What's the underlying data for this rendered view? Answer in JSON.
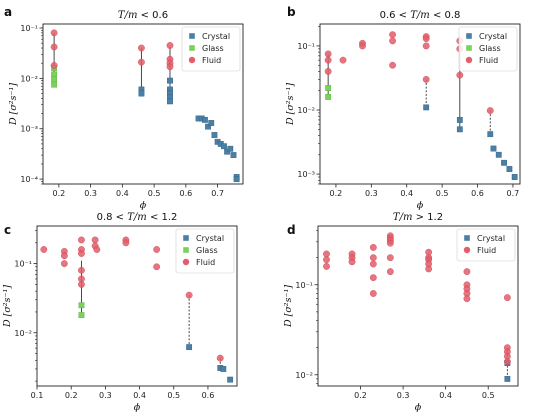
{
  "colors": {
    "crystal": "#4a7fa6",
    "glass": "#7ad25c",
    "fluid": "#e35d6a",
    "connector": "#333333"
  },
  "legend_labels": {
    "crystal": "Crystal",
    "glass": "Glass",
    "fluid": "Fluid"
  },
  "chart_data": [
    {
      "type": "scatter",
      "panel": "a",
      "title": "T/m < 0.6",
      "xlabel": "ϕ",
      "ylabel": "D [σ²s⁻¹]",
      "xscale": "linear",
      "yscale": "log",
      "xlim": [
        0.15,
        0.78
      ],
      "ylim": [
        8e-05,
        0.12
      ],
      "xticks": [
        0.2,
        0.3,
        0.4,
        0.5,
        0.6,
        0.7
      ],
      "xtick_labels": [
        "0.2",
        "0.3",
        "0.4",
        "0.5",
        "0.6",
        "0.7"
      ],
      "yticks": [
        0.0001,
        0.001,
        0.01,
        0.1
      ],
      "ytick_labels": [
        "10⁻⁴",
        "10⁻³",
        "10⁻²",
        "10⁻¹"
      ],
      "legend_position": "top-right",
      "legend": [
        "crystal",
        "glass",
        "fluid"
      ],
      "connectors": [
        {
          "x": 0.185,
          "y1": 0.08,
          "y2": 0.0075,
          "style": "solid"
        },
        {
          "x": 0.46,
          "y1": 0.04,
          "y2": 0.005,
          "style": "solid"
        },
        {
          "x": 0.55,
          "y1": 0.042,
          "y2": 0.0035,
          "style": "solid"
        }
      ],
      "series": [
        {
          "name": "Crystal",
          "kind": "crystal",
          "x": [
            0.46,
            0.46,
            0.55,
            0.55,
            0.55,
            0.55,
            0.55,
            0.64,
            0.65,
            0.66,
            0.67,
            0.68,
            0.69,
            0.7,
            0.71,
            0.72,
            0.73,
            0.74,
            0.75,
            0.76,
            0.76
          ],
          "y": [
            0.006,
            0.005,
            0.009,
            0.006,
            0.005,
            0.0042,
            0.0035,
            0.0016,
            0.0016,
            0.0015,
            0.0011,
            0.0013,
            0.00075,
            0.00055,
            0.0005,
            0.00045,
            0.00035,
            0.0004,
            0.0003,
            0.00011,
            0.0001
          ]
        },
        {
          "name": "Glass",
          "kind": "glass",
          "x": [
            0.185,
            0.185,
            0.185,
            0.185
          ],
          "y": [
            0.016,
            0.012,
            0.0095,
            0.0075
          ]
        },
        {
          "name": "Fluid",
          "kind": "fluid",
          "x": [
            0.185,
            0.185,
            0.185,
            0.46,
            0.46,
            0.55,
            0.55,
            0.55,
            0.55
          ],
          "y": [
            0.08,
            0.042,
            0.018,
            0.04,
            0.021,
            0.045,
            0.024,
            0.02,
            0.017
          ]
        }
      ]
    },
    {
      "type": "scatter",
      "panel": "b",
      "title": "0.6 < T/m < 0.8",
      "xlabel": "ϕ",
      "ylabel": "D [σ²s⁻¹]",
      "xscale": "linear",
      "yscale": "log",
      "xlim": [
        0.155,
        0.72
      ],
      "ylim": [
        0.0007,
        0.22
      ],
      "xticks": [
        0.2,
        0.3,
        0.4,
        0.5,
        0.6,
        0.7
      ],
      "xtick_labels": [
        "0.2",
        "0.3",
        "0.4",
        "0.5",
        "0.6",
        "0.7"
      ],
      "yticks": [
        0.001,
        0.01,
        0.1
      ],
      "ytick_labels": [
        "10⁻³",
        "10⁻²",
        "10⁻¹"
      ],
      "legend_position": "top-right",
      "legend": [
        "crystal",
        "glass",
        "fluid"
      ],
      "connectors": [
        {
          "x": 0.178,
          "y1": 0.075,
          "y2": 0.016,
          "style": "solid"
        },
        {
          "x": 0.455,
          "y1": 0.03,
          "y2": 0.011,
          "style": "dashed"
        },
        {
          "x": 0.55,
          "y1": 0.12,
          "y2": 0.005,
          "style": "solid"
        },
        {
          "x": 0.636,
          "y1": 0.0098,
          "y2": 0.0042,
          "style": "dashed"
        }
      ],
      "series": [
        {
          "name": "Crystal",
          "kind": "crystal",
          "x": [
            0.455,
            0.55,
            0.55,
            0.636,
            0.645,
            0.66,
            0.675,
            0.69,
            0.705
          ],
          "y": [
            0.011,
            0.007,
            0.005,
            0.0042,
            0.0025,
            0.002,
            0.0015,
            0.0012,
            0.0009
          ]
        },
        {
          "name": "Glass",
          "kind": "glass",
          "x": [
            0.178,
            0.178
          ],
          "y": [
            0.022,
            0.016
          ]
        },
        {
          "name": "Fluid",
          "kind": "fluid",
          "x": [
            0.178,
            0.178,
            0.178,
            0.22,
            0.275,
            0.275,
            0.36,
            0.36,
            0.36,
            0.455,
            0.455,
            0.455,
            0.455,
            0.55,
            0.55,
            0.55,
            0.636
          ],
          "y": [
            0.075,
            0.06,
            0.04,
            0.06,
            0.11,
            0.1,
            0.15,
            0.12,
            0.05,
            0.14,
            0.13,
            0.1,
            0.03,
            0.12,
            0.09,
            0.035,
            0.0098
          ]
        }
      ]
    },
    {
      "type": "scatter",
      "panel": "c",
      "title": "0.8 < T/m < 1.2",
      "xlabel": "ϕ",
      "ylabel": "D [σ²s⁻¹]",
      "xscale": "linear",
      "yscale": "log",
      "xlim": [
        0.1,
        0.685
      ],
      "ylim": [
        0.0017,
        0.35
      ],
      "xticks": [
        0.1,
        0.2,
        0.3,
        0.4,
        0.5,
        0.6
      ],
      "xtick_labels": [
        "0.1",
        "0.2",
        "0.3",
        "0.4",
        "0.5",
        "0.6"
      ],
      "yticks": [
        0.01,
        0.1
      ],
      "ytick_labels": [
        "10⁻²",
        "10⁻¹"
      ],
      "legend_position": "top-right",
      "legend": [
        "crystal",
        "glass",
        "fluid"
      ],
      "connectors": [
        {
          "x": 0.23,
          "y1": 0.11,
          "y2": 0.018,
          "style": "solid"
        },
        {
          "x": 0.545,
          "y1": 0.035,
          "y2": 0.0062,
          "style": "dashed"
        },
        {
          "x": 0.636,
          "y1": 0.0043,
          "y2": 0.003,
          "style": "dashed"
        }
      ],
      "series": [
        {
          "name": "Crystal",
          "kind": "crystal",
          "x": [
            0.545,
            0.636,
            0.645,
            0.665
          ],
          "y": [
            0.0062,
            0.0031,
            0.003,
            0.0021
          ]
        },
        {
          "name": "Glass",
          "kind": "glass",
          "x": [
            0.23,
            0.23
          ],
          "y": [
            0.025,
            0.018
          ]
        },
        {
          "name": "Fluid",
          "kind": "fluid",
          "x": [
            0.12,
            0.18,
            0.18,
            0.18,
            0.23,
            0.23,
            0.23,
            0.23,
            0.23,
            0.23,
            0.27,
            0.27,
            0.275,
            0.36,
            0.36,
            0.45,
            0.45,
            0.545,
            0.636
          ],
          "y": [
            0.16,
            0.15,
            0.13,
            0.1,
            0.22,
            0.16,
            0.14,
            0.08,
            0.06,
            0.05,
            0.22,
            0.18,
            0.16,
            0.22,
            0.2,
            0.16,
            0.09,
            0.035,
            0.0043
          ]
        }
      ]
    },
    {
      "type": "scatter",
      "panel": "d",
      "title": "T/m > 1.2",
      "xlabel": "ϕ",
      "ylabel": "D [σ²s⁻¹]",
      "xscale": "linear",
      "yscale": "log",
      "xlim": [
        0.1,
        0.57
      ],
      "ylim": [
        0.0075,
        0.45
      ],
      "xticks": [
        0.2,
        0.3,
        0.4,
        0.5
      ],
      "xtick_labels": [
        "0.2",
        "0.3",
        "0.4",
        "0.5"
      ],
      "yticks": [
        0.01,
        0.1
      ],
      "ytick_labels": [
        "10⁻²",
        "10⁻¹"
      ],
      "legend_position": "top-right",
      "legend": [
        "crystal",
        "fluid"
      ],
      "connectors": [
        {
          "x": 0.545,
          "y1": 0.02,
          "y2": 0.009,
          "style": "dashed"
        }
      ],
      "series": [
        {
          "name": "Crystal",
          "kind": "crystal",
          "x": [
            0.545,
            0.545
          ],
          "y": [
            0.0135,
            0.009
          ]
        },
        {
          "name": "Fluid",
          "kind": "fluid",
          "x": [
            0.12,
            0.12,
            0.12,
            0.18,
            0.18,
            0.18,
            0.23,
            0.23,
            0.23,
            0.23,
            0.23,
            0.27,
            0.27,
            0.27,
            0.27,
            0.27,
            0.27,
            0.36,
            0.36,
            0.36,
            0.36,
            0.36,
            0.45,
            0.45,
            0.45,
            0.45,
            0.45,
            0.545,
            0.545,
            0.545,
            0.545,
            0.545
          ],
          "y": [
            0.22,
            0.19,
            0.16,
            0.22,
            0.2,
            0.18,
            0.26,
            0.2,
            0.17,
            0.12,
            0.08,
            0.35,
            0.33,
            0.31,
            0.29,
            0.2,
            0.14,
            0.23,
            0.2,
            0.19,
            0.17,
            0.15,
            0.14,
            0.1,
            0.09,
            0.08,
            0.07,
            0.072,
            0.02,
            0.018,
            0.016,
            0.014
          ]
        }
      ]
    }
  ]
}
